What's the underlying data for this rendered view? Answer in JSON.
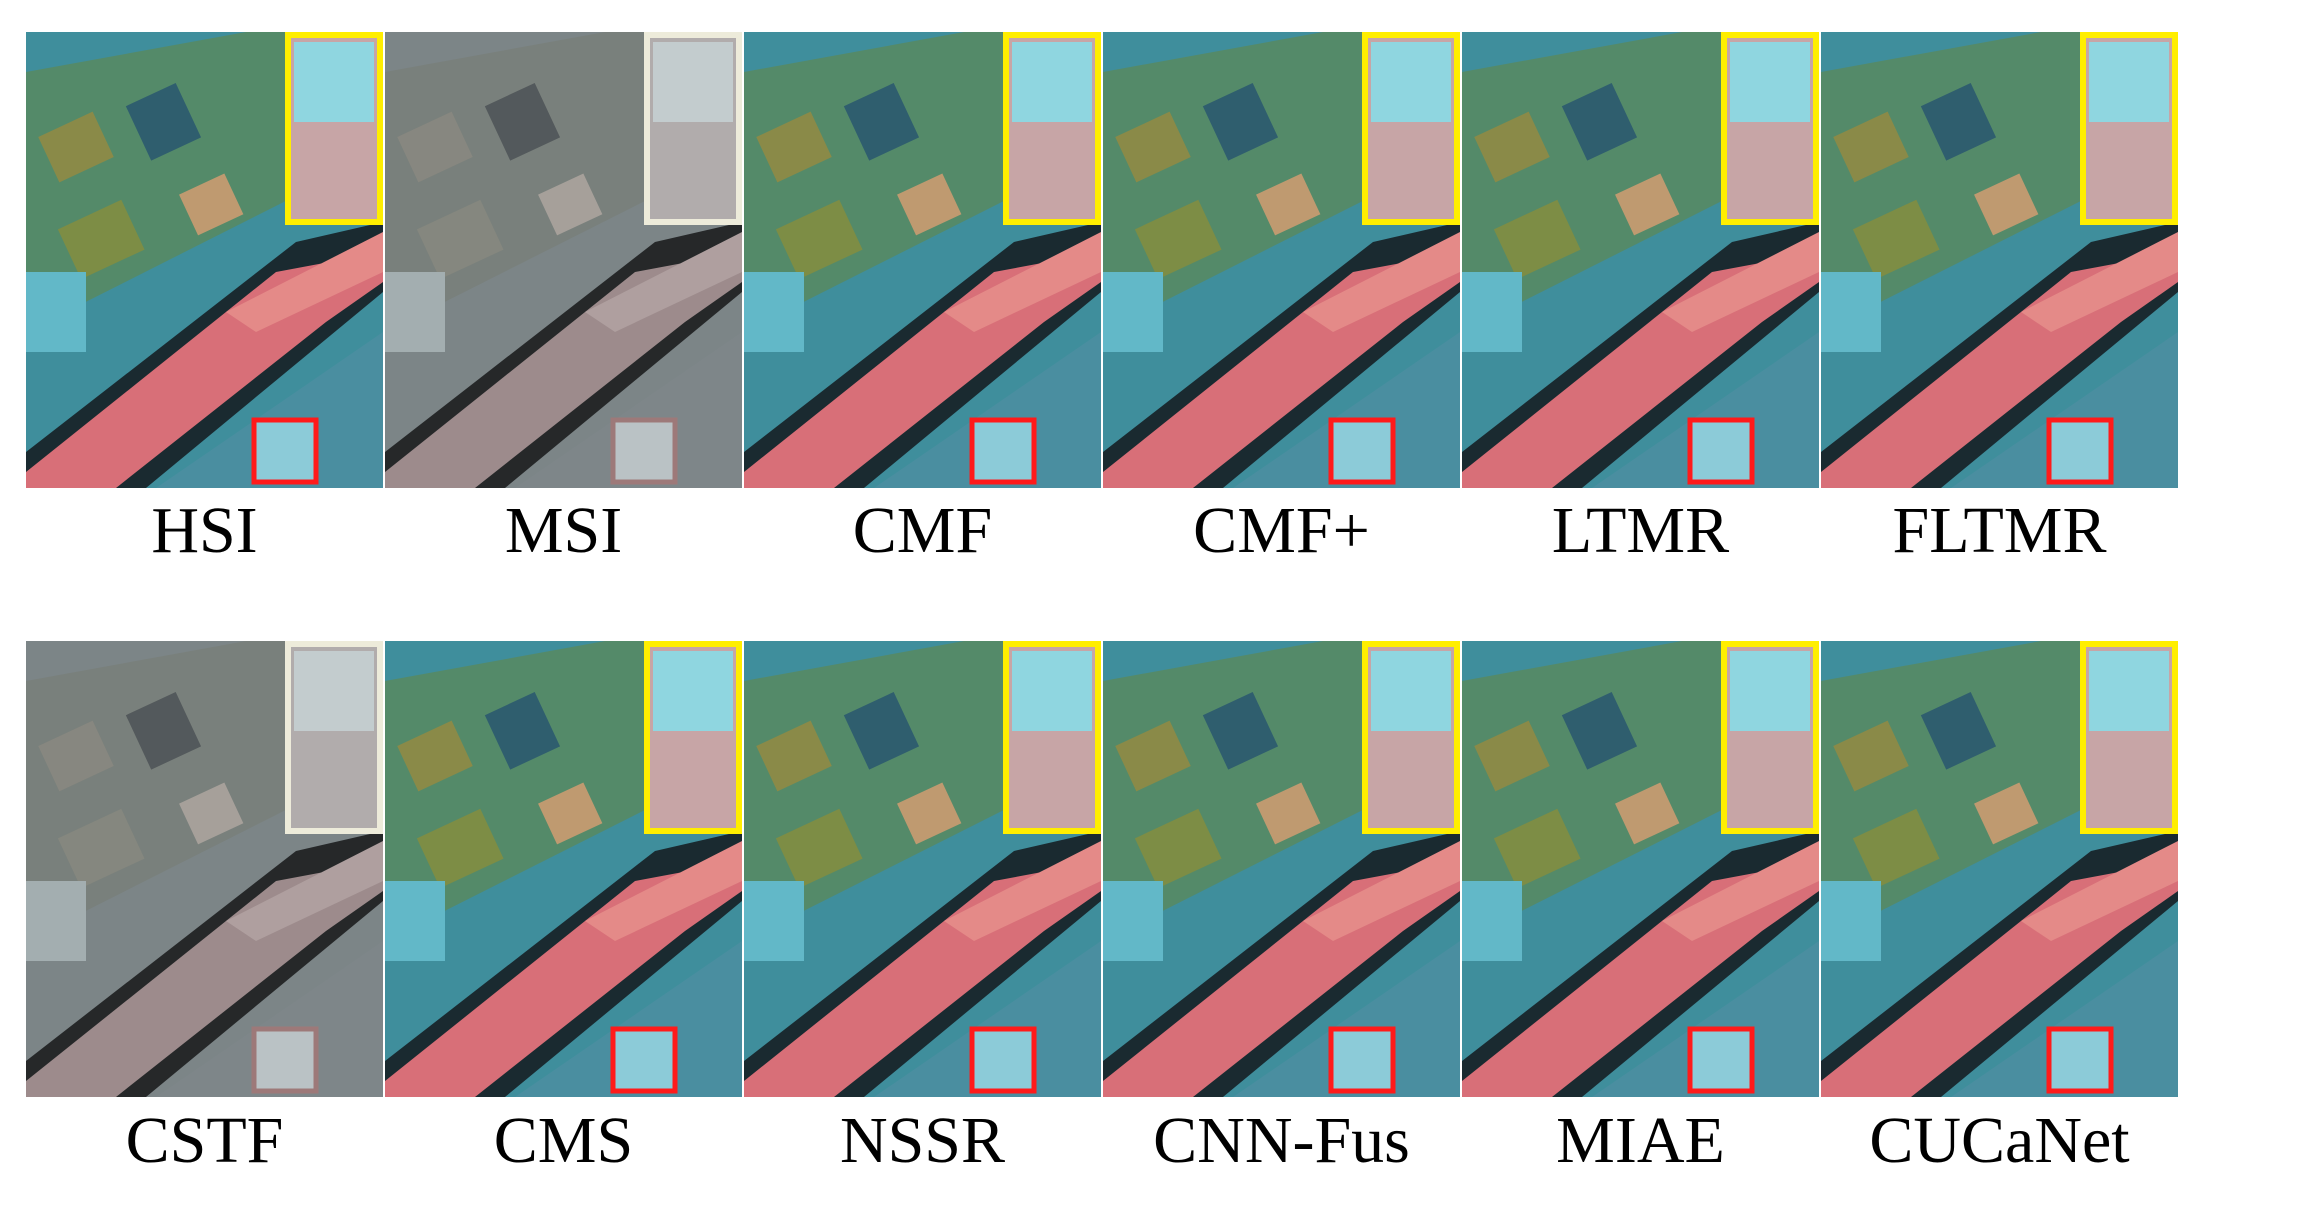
{
  "labels": [
    "HSI",
    "MSI",
    "CMF",
    "CMF+",
    "LTMR",
    "FLTMR",
    "CSTF",
    "CMS",
    "NSSR",
    "CNN-Fus",
    "MIAE",
    "CUCaNet"
  ]
}
